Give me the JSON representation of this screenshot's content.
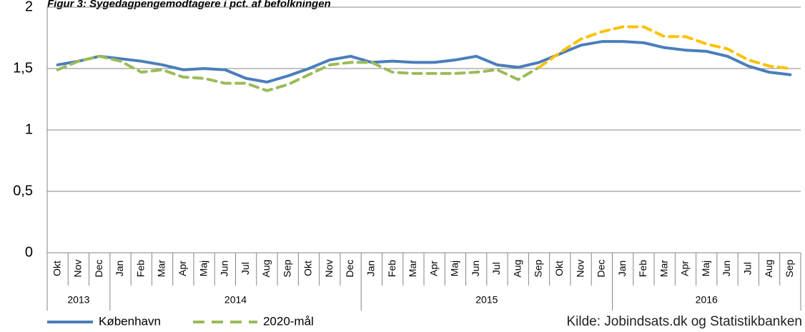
{
  "chart_data": {
    "type": "line",
    "title": "Figur 3: Sygedagpengemodtagere i pct. af befolkningen",
    "source": "Kilde: Jobindsats.dk og Statistikbanken",
    "categories": [
      "Okt",
      "Nov",
      "Dec",
      "Jan",
      "Feb",
      "Mar",
      "Apr",
      "Maj",
      "Jun",
      "Jul",
      "Aug",
      "Sep",
      "Okt",
      "Nov",
      "Dec",
      "Jan",
      "Feb",
      "Mar",
      "Apr",
      "Maj",
      "Jun",
      "Jul",
      "Aug",
      "Sep",
      "Okt",
      "Nov",
      "Dec",
      "Jan",
      "Feb",
      "Mar",
      "Apr",
      "Maj",
      "Jun",
      "Jul",
      "Aug",
      "Sep"
    ],
    "years": [
      "2013",
      null,
      null,
      "2014",
      null,
      null,
      null,
      null,
      null,
      null,
      null,
      null,
      null,
      null,
      null,
      "2015",
      null,
      null,
      null,
      null,
      null,
      null,
      null,
      null,
      null,
      null,
      null,
      "2016",
      null,
      null,
      null,
      null,
      null,
      null,
      null,
      null
    ],
    "series": [
      {
        "name": "København",
        "color": "#4a7ebb",
        "dashed": false,
        "values": [
          1.53,
          1.56,
          1.6,
          1.58,
          1.56,
          1.53,
          1.49,
          1.5,
          1.49,
          1.42,
          1.39,
          1.44,
          1.5,
          1.57,
          1.6,
          1.55,
          1.56,
          1.55,
          1.55,
          1.57,
          1.6,
          1.53,
          1.51,
          1.55,
          1.62,
          1.69,
          1.72,
          1.72,
          1.71,
          1.67,
          1.65,
          1.64,
          1.6,
          1.52,
          1.47,
          1.45
        ]
      },
      {
        "name": "2020-mål",
        "color": "#9bbb59",
        "dashed": true,
        "values": [
          1.49,
          1.56,
          1.6,
          1.56,
          1.47,
          1.49,
          1.43,
          1.42,
          1.38,
          1.38,
          1.32,
          1.37,
          1.45,
          1.53,
          1.55,
          1.55,
          1.47,
          1.46,
          1.46,
          1.46,
          1.47,
          1.49,
          1.41,
          1.51,
          1.63,
          1.74,
          1.8,
          1.84,
          1.84,
          1.76,
          1.76,
          1.7,
          1.66,
          1.57,
          1.52,
          1.5
        ],
        "point_colors": [
          "#9bbb59",
          "#9bbb59",
          "#9bbb59",
          "#9bbb59",
          "#9bbb59",
          "#9bbb59",
          "#9bbb59",
          "#9bbb59",
          "#9bbb59",
          "#9bbb59",
          "#9bbb59",
          "#9bbb59",
          "#9bbb59",
          "#9bbb59",
          "#9bbb59",
          "#9bbb59",
          "#9bbb59",
          "#9bbb59",
          "#9bbb59",
          "#9bbb59",
          "#9bbb59",
          "#9bbb59",
          "#9bbb59",
          "#9bbb59",
          "#ffc000",
          "#ffc000",
          "#ffc000",
          "#ffc000",
          "#ffc000",
          "#ffc000",
          "#ffc000",
          "#ffc000",
          "#ffc000",
          "#ffc000",
          "#ffc000",
          "#ffc000"
        ]
      }
    ],
    "ylim": [
      0,
      2
    ],
    "yticks": [
      0,
      {
        "value": 0.5,
        "label": "0,5"
      },
      1,
      {
        "value": 1.5,
        "label": "1,5"
      },
      2
    ],
    "grid": true,
    "legend": "bottom-left"
  }
}
